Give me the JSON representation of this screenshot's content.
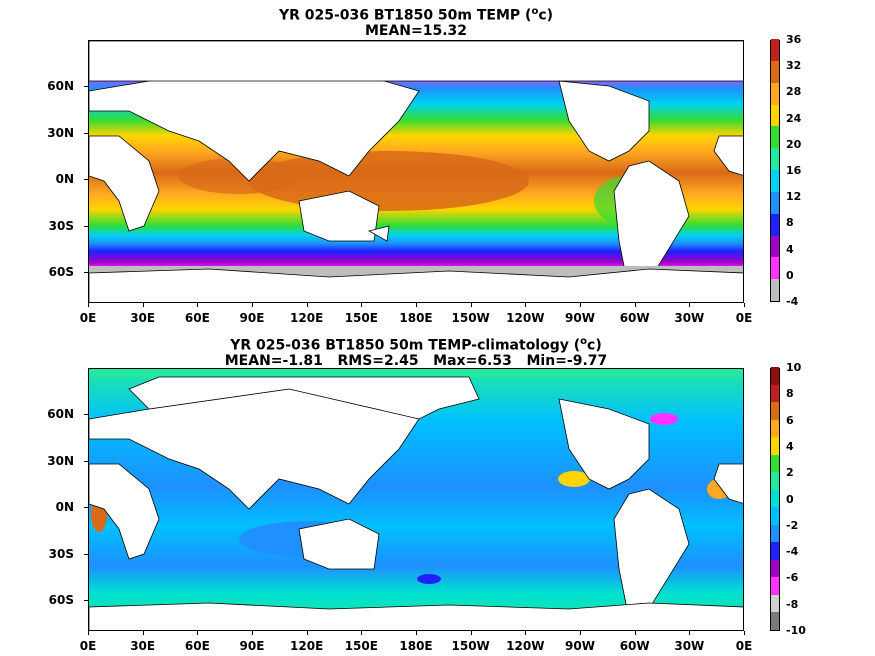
{
  "panels": [
    {
      "title_line1": "YR 025-036 BT1850 50m TEMP (",
      "title_sup": "o",
      "title_unit_end": "c)",
      "title_line2": "MEAN=15.32",
      "colorbar": {
        "ticks": [
          "36",
          "32",
          "28",
          "24",
          "20",
          "16",
          "12",
          "8",
          "4",
          "0",
          "-4"
        ],
        "colors": [
          "#bdbdbd",
          "#ff33ff",
          "#a000c8",
          "#2020ff",
          "#1e90ff",
          "#00d2f0",
          "#22e8a0",
          "#33dd33",
          "#ffd500",
          "#ffa820",
          "#d86a18",
          "#c02020"
        ]
      }
    },
    {
      "title_line1": "YR 025-036 BT1850 50m TEMP-climatology (",
      "title_sup": "o",
      "title_unit_end": "c)",
      "title_line2": "MEAN=-1.81   RMS=2.45   Max=6.53   Min=-9.77",
      "colorbar": {
        "ticks": [
          "10",
          "8",
          "6",
          "4",
          "2",
          "0",
          "-2",
          "-4",
          "-6",
          "-8",
          "-10"
        ],
        "colors": [
          "#7a7a7a",
          "#d0d0d0",
          "#ff33ff",
          "#a000c8",
          "#2020ff",
          "#1e90ff",
          "#00c0ff",
          "#00e0d0",
          "#22e8a0",
          "#33dd33",
          "#ffd500",
          "#ffa820",
          "#d86a18",
          "#c02020",
          "#8b1010"
        ]
      }
    }
  ],
  "x_ticks": [
    "0E",
    "30E",
    "60E",
    "90E",
    "120E",
    "150E",
    "180E",
    "150W",
    "120W",
    "90W",
    "60W",
    "30W",
    "0E"
  ],
  "y_ticks": [
    "60N",
    "30N",
    "0N",
    "30S",
    "60S"
  ]
}
